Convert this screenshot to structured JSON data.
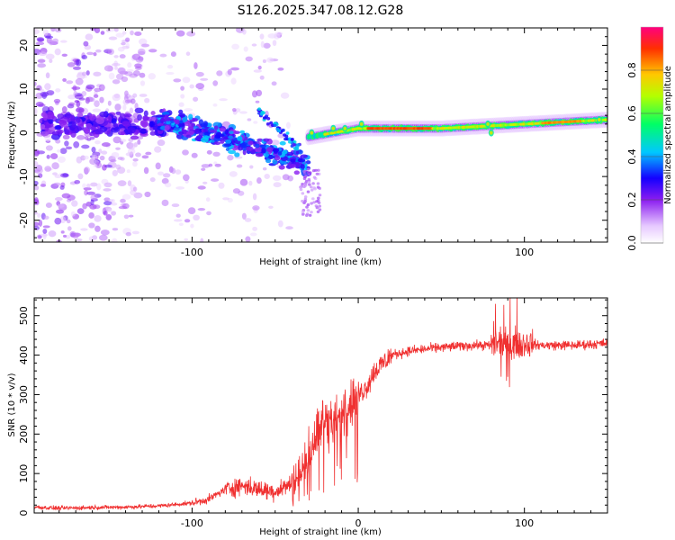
{
  "title": "S126.2025.347.08.12.G28",
  "chart_data": [
    {
      "type": "heatmap",
      "name": "spectrogram",
      "xlabel": "Height of straight line (km)",
      "ylabel": "Frequency (Hz)",
      "xlim": [
        -195,
        150
      ],
      "ylim": [
        -25,
        24
      ],
      "xticks": [
        -100,
        0,
        100
      ],
      "yticks": [
        -20,
        -10,
        0,
        10,
        20
      ],
      "colorbar": {
        "label": "Normalized spectral amplitude",
        "range": [
          0,
          1
        ],
        "ticks": [
          "0.0",
          "0.2",
          "0.4",
          "0.6",
          "0.8"
        ],
        "tick_values": [
          0,
          0.2,
          0.4,
          0.6,
          0.8
        ]
      },
      "dominant_ridge": {
        "description": "main signal band",
        "x": [
          -30,
          0,
          50,
          100,
          150
        ],
        "frequency_hz": [
          -1,
          1,
          1,
          2,
          3
        ],
        "peak_amplitude": 0.85
      },
      "scatter_region": {
        "x_range": [
          -195,
          -25
        ],
        "frequency_range_hz": [
          -25,
          24
        ],
        "typical_amplitude": 0.1
      }
    },
    {
      "type": "line",
      "name": "snr",
      "xlabel": "Height of straight line (km)",
      "ylabel": "SNR (10 * v/v)",
      "xlim": [
        -195,
        150
      ],
      "ylim": [
        0,
        545
      ],
      "xticks": [
        -100,
        0,
        100
      ],
      "yticks": [
        0,
        100,
        200,
        300,
        400,
        500
      ],
      "color": "#f03030",
      "series": [
        {
          "name": "SNR",
          "x": [
            -195,
            -180,
            -160,
            -140,
            -120,
            -100,
            -90,
            -80,
            -70,
            -60,
            -50,
            -40,
            -35,
            -30,
            -25,
            -20,
            -15,
            -10,
            -5,
            0,
            5,
            10,
            20,
            30,
            50,
            70,
            80,
            90,
            100,
            110,
            130,
            150
          ],
          "y": [
            15,
            12,
            14,
            15,
            18,
            25,
            35,
            60,
            70,
            60,
            55,
            75,
            100,
            150,
            200,
            250,
            220,
            250,
            280,
            300,
            320,
            360,
            400,
            410,
            420,
            425,
            425,
            430,
            430,
            425,
            425,
            430
          ]
        }
      ]
    }
  ]
}
